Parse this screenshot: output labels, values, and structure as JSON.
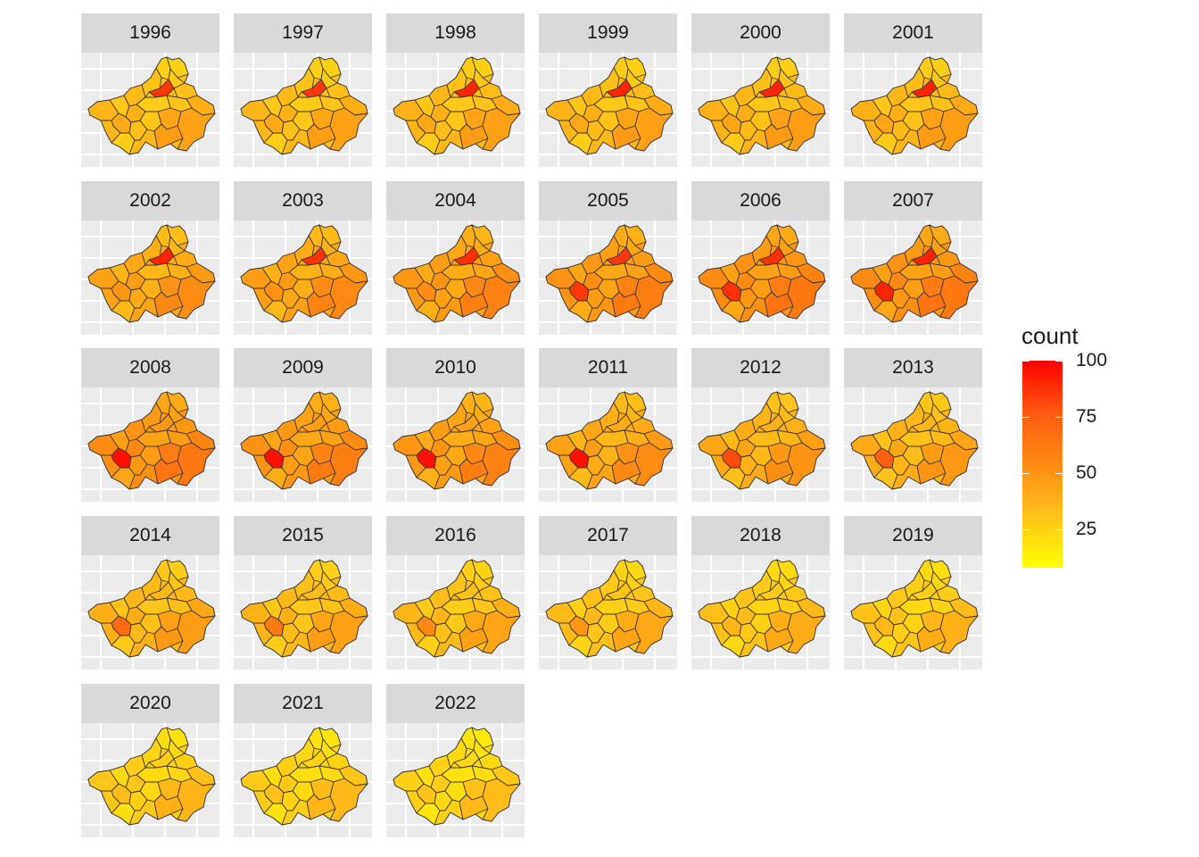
{
  "panels": [
    {
      "label": "1996",
      "level": 0.35,
      "hotspot": "north",
      "hot": 0.9
    },
    {
      "label": "1997",
      "level": 0.35,
      "hotspot": "north",
      "hot": 0.9
    },
    {
      "label": "1998",
      "level": 0.36,
      "hotspot": "north",
      "hot": 0.95
    },
    {
      "label": "1999",
      "level": 0.36,
      "hotspot": "north",
      "hot": 0.95
    },
    {
      "label": "2000",
      "level": 0.37,
      "hotspot": "north",
      "hot": 0.95
    },
    {
      "label": "2001",
      "level": 0.37,
      "hotspot": "north",
      "hot": 0.95
    },
    {
      "label": "2002",
      "level": 0.45,
      "hotspot": "north",
      "hot": 0.95
    },
    {
      "label": "2003",
      "level": 0.47,
      "hotspot": "north",
      "hot": 0.92
    },
    {
      "label": "2004",
      "level": 0.5,
      "hotspot": "north",
      "hot": 0.92
    },
    {
      "label": "2005",
      "level": 0.52,
      "hotspot": "both",
      "hot": 0.9
    },
    {
      "label": "2006",
      "level": 0.55,
      "hotspot": "both",
      "hot": 0.92
    },
    {
      "label": "2007",
      "level": 0.55,
      "hotspot": "both",
      "hot": 0.95
    },
    {
      "label": "2008",
      "level": 0.55,
      "hotspot": "west",
      "hot": 1.0
    },
    {
      "label": "2009",
      "level": 0.52,
      "hotspot": "west",
      "hot": 1.0
    },
    {
      "label": "2010",
      "level": 0.5,
      "hotspot": "west",
      "hot": 1.0
    },
    {
      "label": "2011",
      "level": 0.45,
      "hotspot": "west",
      "hot": 1.0
    },
    {
      "label": "2012",
      "level": 0.42,
      "hotspot": "west",
      "hot": 0.85
    },
    {
      "label": "2013",
      "level": 0.4,
      "hotspot": "west",
      "hot": 0.8
    },
    {
      "label": "2014",
      "level": 0.38,
      "hotspot": "west",
      "hot": 0.75
    },
    {
      "label": "2015",
      "level": 0.36,
      "hotspot": "west",
      "hot": 0.68
    },
    {
      "label": "2016",
      "level": 0.34,
      "hotspot": "west",
      "hot": 0.6
    },
    {
      "label": "2017",
      "level": 0.32,
      "hotspot": "west",
      "hot": 0.55
    },
    {
      "label": "2018",
      "level": 0.3,
      "hotspot": "none",
      "hot": 0.4
    },
    {
      "label": "2019",
      "level": 0.28,
      "hotspot": "none",
      "hot": 0.35
    },
    {
      "label": "2020",
      "level": 0.26,
      "hotspot": "none",
      "hot": 0.35
    },
    {
      "label": "2021",
      "level": 0.24,
      "hotspot": "none",
      "hot": 0.3
    },
    {
      "label": "2022",
      "level": 0.22,
      "hotspot": "none",
      "hot": 0.3
    }
  ],
  "legend": {
    "title": "count",
    "min": 8,
    "max": 100,
    "breaks": [
      {
        "label": "100",
        "value": 100
      },
      {
        "label": "75",
        "value": 75
      },
      {
        "label": "50",
        "value": 50
      },
      {
        "label": "25",
        "value": 25
      }
    ],
    "colors": {
      "low": "#ffff00",
      "high": "#ff0000"
    }
  },
  "colors": {
    "strip": "#d9d9d9",
    "panel": "#ebebeb",
    "grid": "#ffffff",
    "border": "#3a3a3a"
  }
}
